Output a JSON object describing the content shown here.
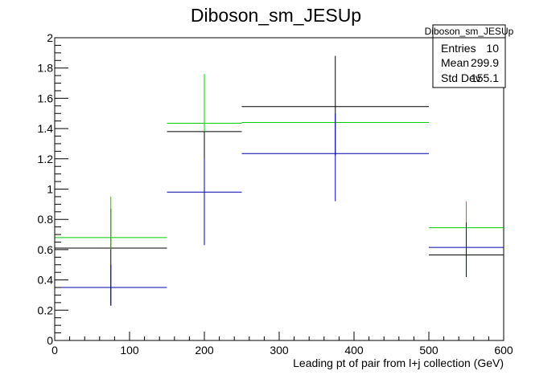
{
  "chart_data": {
    "type": "scatter",
    "title": "Diboson_sm_JESUp",
    "xlabel": "Leading pt of pair from l+j collection (GeV)",
    "ylabel": "",
    "xlim": [
      0,
      600
    ],
    "ylim": [
      0,
      2
    ],
    "x_ticks": [
      0,
      100,
      200,
      300,
      400,
      500,
      600
    ],
    "x_tick_labels": [
      "0",
      "100",
      "200",
      "300",
      "400",
      "500",
      "600"
    ],
    "y_ticks": [
      0,
      0.2,
      0.4,
      0.6,
      0.8,
      1,
      1.2,
      1.4,
      1.6,
      1.8,
      2
    ],
    "y_tick_labels": [
      "0",
      "0.2",
      "0.4",
      "0.6",
      "0.8",
      "1",
      "1.2",
      "1.4",
      "1.6",
      "1.8",
      "2"
    ],
    "grid": false,
    "stats_box": {
      "title": "Diboson_sm_JESUp",
      "rows": [
        {
          "label": "Entries",
          "value": "10"
        },
        {
          "label": "Mean",
          "value": "299.9"
        },
        {
          "label": "Std Dev",
          "value": "155.1"
        }
      ],
      "placement": "top-right"
    },
    "series": [
      {
        "color": "#000000",
        "points": [
          {
            "x_low": 0,
            "x_high": 150,
            "x": 75,
            "y": 0.61,
            "y_err_low": 0.23,
            "y_err_high": 0.87
          },
          {
            "x_low": 150,
            "x_high": 250,
            "x": 200,
            "y": 1.38,
            "y_err_low": 1.0,
            "y_err_high": 1.7
          },
          {
            "x_low": 250,
            "x_high": 500,
            "x": 375,
            "y": 1.545,
            "y_err_low": 1.22,
            "y_err_high": 1.88
          },
          {
            "x_low": 500,
            "x_high": 600,
            "x": 550,
            "y": 0.565,
            "y_err_low": 0.42,
            "y_err_high": 0.72
          }
        ]
      },
      {
        "color": "#00cc00",
        "points": [
          {
            "x_low": 0,
            "x_high": 150,
            "x": 75,
            "y": 0.68,
            "y_err_low": 0.6,
            "y_err_high": 0.95
          },
          {
            "x_low": 150,
            "x_high": 250,
            "x": 200,
            "y": 1.435,
            "y_err_low": 1.38,
            "y_err_high": 1.76
          },
          {
            "x_low": 250,
            "x_high": 500,
            "x": 375,
            "y": 1.44,
            "y_err_low": 1.44,
            "y_err_high": 1.44
          },
          {
            "x_low": 500,
            "x_high": 600,
            "x": 550,
            "y": 0.745,
            "y_err_low": 0.6,
            "y_err_high": 0.92
          }
        ]
      },
      {
        "color": "#0000aa",
        "points": [
          {
            "x_low": 0,
            "x_high": 150,
            "x": 75,
            "y": 0.35,
            "y_err_low": 0.23,
            "y_err_high": 0.5
          },
          {
            "x_low": 150,
            "x_high": 250,
            "x": 200,
            "y": 0.98,
            "y_err_low": 0.63,
            "y_err_high": 1.2
          },
          {
            "x_low": 250,
            "x_high": 500,
            "x": 375,
            "y": 1.235,
            "y_err_low": 0.92,
            "y_err_high": 1.5
          },
          {
            "x_low": 500,
            "x_high": 600,
            "x": 550,
            "y": 0.615,
            "y_err_low": 0.42,
            "y_err_high": 0.78
          }
        ]
      }
    ]
  }
}
